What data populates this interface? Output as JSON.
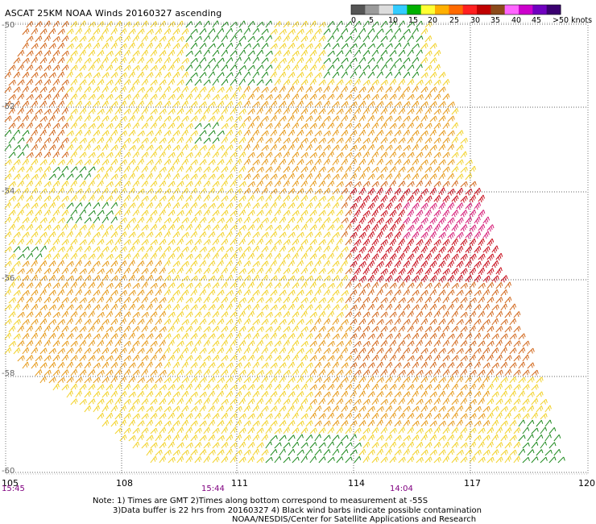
{
  "title": "ASCAT 25KM NOAA Winds 20160327 ascending",
  "lat_labels": [
    {
      "text": "-50"
    },
    {
      "text": "-52"
    },
    {
      "text": "-54"
    },
    {
      "text": "-56"
    },
    {
      "text": "-58"
    },
    {
      "text": "-60"
    }
  ],
  "lon_labels": [
    {
      "text": "105"
    },
    {
      "text": "108"
    },
    {
      "text": "111"
    },
    {
      "text": "114"
    },
    {
      "text": "117"
    },
    {
      "text": "120"
    }
  ],
  "time_labels": [
    {
      "text": "15:45"
    },
    {
      "text": "15:44"
    },
    {
      "text": "14:04"
    }
  ],
  "color_scale": {
    "labels": [
      "0",
      "5",
      "10",
      "15",
      "20",
      "25",
      "30",
      "35",
      "40",
      "45",
      ">50 knots"
    ],
    "colors": [
      "#555555",
      "#9a9a9a",
      "#dcdcdc",
      "#33ccff",
      "#00b000",
      "#ffff33",
      "#ffb000",
      "#ff6a00",
      "#ff2020",
      "#c00000",
      "#8b4a1a",
      "#ff66ff",
      "#cc00cc",
      "#7000c0",
      "#3a0070"
    ]
  },
  "note_lines": [
    "Note: 1) Times are GMT 2)Times along bottom correspond to measurement at -55S",
    "3)Data buffer is 22 hrs from 20160327 4) Black wind barbs indicate possible contamination",
    "NOAA/NESDIS/Center for Satellite Applications and Research"
  ],
  "barb_colors": {
    "green": "#1f8a1f",
    "yellow": "#f2d22a",
    "orange": "#e69a1a",
    "dark_orange": "#d2691e",
    "red": "#c8101e",
    "magenta": "#d6207a"
  }
}
